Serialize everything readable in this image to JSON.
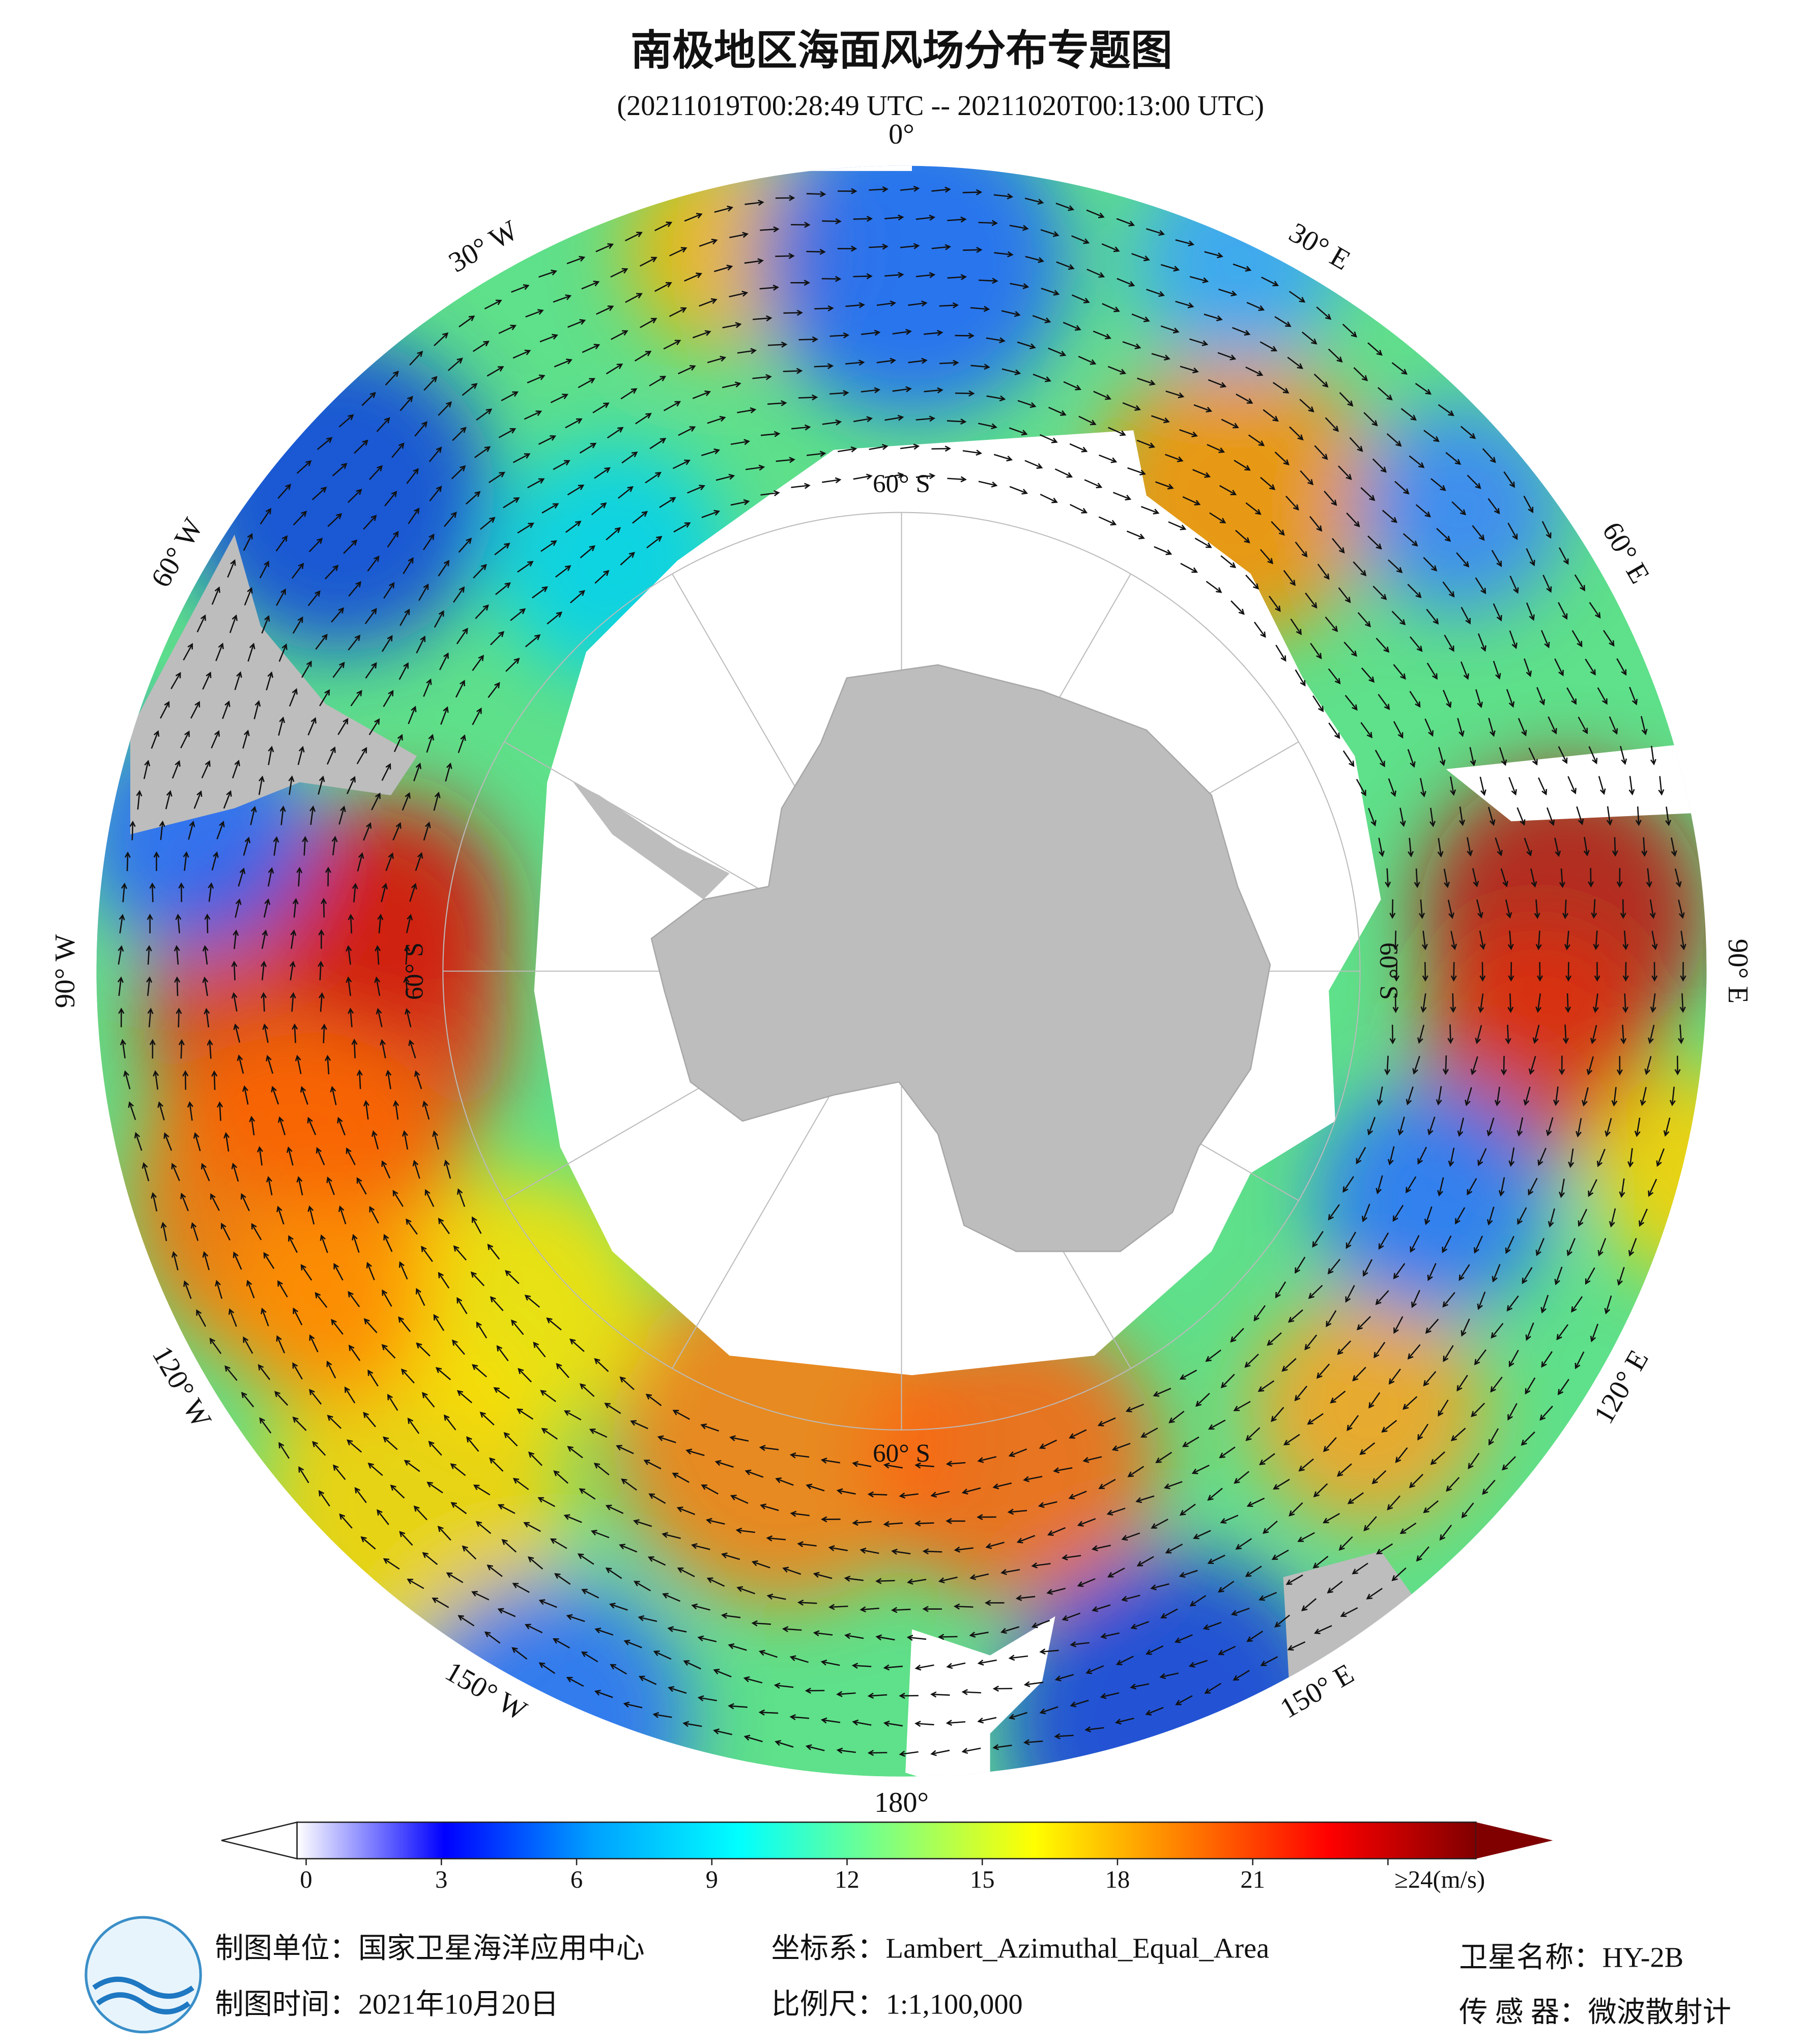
{
  "title": "南极地区海面风场分布专题图",
  "subtitle": "(20211019T00:28:49 UTC -- 20211020T00:13:00 UTC)",
  "map": {
    "lon_labels": [
      "0°",
      "30° E",
      "60° E",
      "90° E",
      "120° E",
      "150° E",
      "180°",
      "150° W",
      "120° W",
      "90° W",
      "60° W",
      "30° W"
    ],
    "lat_labels": [
      "60° S",
      "60° S",
      "60° S",
      "60° S"
    ]
  },
  "colorbar": {
    "ticks": [
      0,
      3,
      6,
      9,
      12,
      15,
      18,
      21,
      {
        "value": 24,
        "label": "≥24(m/s)"
      }
    ],
    "colors": [
      "#ffffff",
      "#0000ff",
      "#00a0ff",
      "#00ffff",
      "#80ff80",
      "#ffff00",
      "#ff8000",
      "#ff0000",
      "#800000"
    ]
  },
  "footer": {
    "unit": "制图单位：国家卫星海洋应用中心",
    "time": "制图时间：2021年10月20日",
    "crs": "坐标系：Lambert_Azimuthal_Equal_Area",
    "scale": "比例尺：1:1,100,000",
    "satellite": "卫星名称：HY-2B",
    "sensor": "传 感 器：微波散射计"
  }
}
